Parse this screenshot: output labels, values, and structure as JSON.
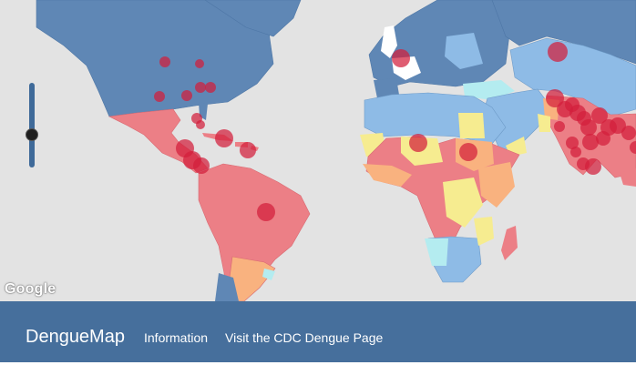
{
  "app": {
    "brand": "DengueMap"
  },
  "nav": {
    "information": "Information",
    "cdc": "Visit the CDC Dengue Page"
  },
  "map": {
    "attribution": "Google",
    "zoom_level_fraction": 0.6,
    "colors": {
      "ocean": "#e3e3e3",
      "no_risk": "#5f87b5",
      "low": "#8ebbe6",
      "low_moderate": "#b4ecf0",
      "moderate": "#f6ec90",
      "elevated": "#f9b27f",
      "high": "#ec7f86",
      "outbreak_marker": "#d21f3c",
      "footer": "#466f9c"
    }
  }
}
